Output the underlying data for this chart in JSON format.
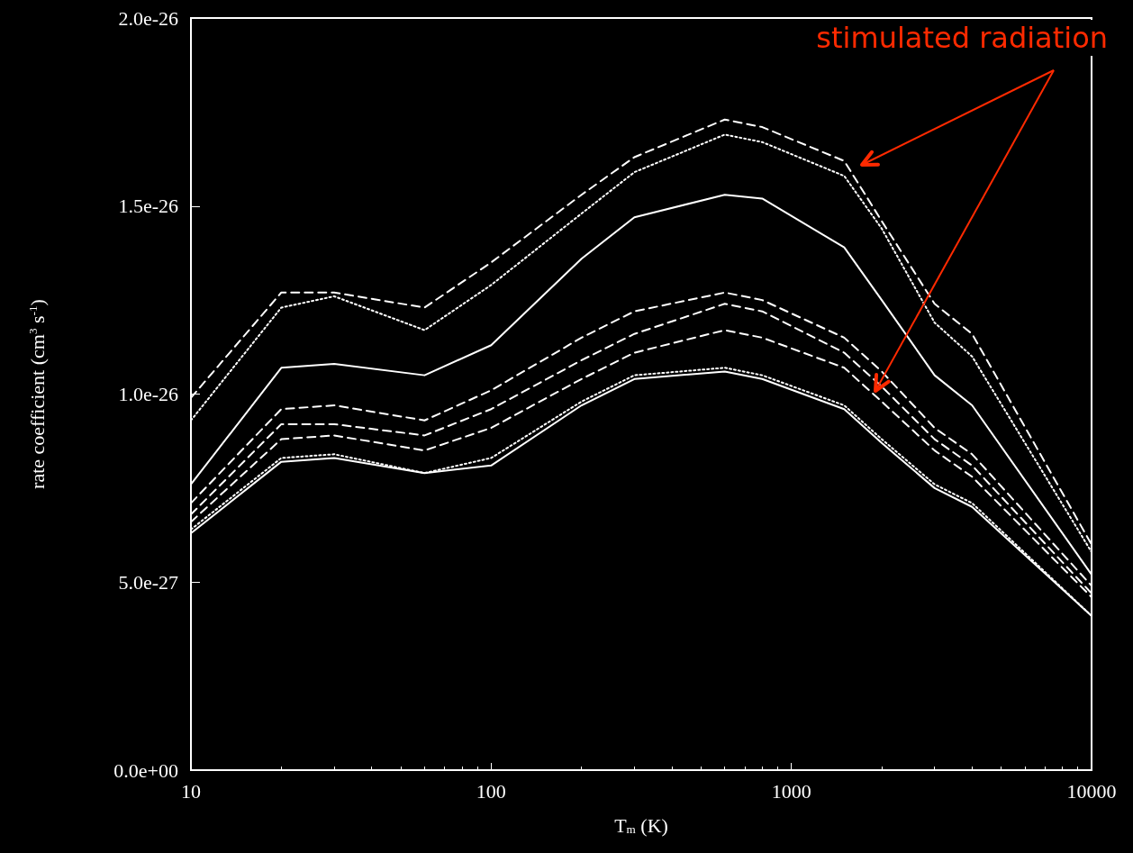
{
  "chart_data": {
    "type": "line",
    "xlabel": "T$_{m}$ (K)",
    "ylabel": "rate coefficient (cm$^{3}$ s$^{-1}$)",
    "x": [
      10,
      20,
      30,
      60,
      100,
      200,
      300,
      600,
      800,
      1500,
      2000,
      3000,
      4000,
      10000
    ],
    "series": [
      {
        "color": "#ffffff",
        "line_style": "dashed",
        "values": [
          9.9e-27,
          1.27e-26,
          1.27e-26,
          1.23e-26,
          1.35e-26,
          1.53e-26,
          1.63e-26,
          1.73e-26,
          1.71e-26,
          1.62e-26,
          1.46e-26,
          1.24e-26,
          1.16e-26,
          6e-27
        ]
      },
      {
        "color": "#ffffff",
        "line_style": "dotted",
        "values": [
          9.3e-27,
          1.23e-26,
          1.26e-26,
          1.17e-26,
          1.29e-26,
          1.48e-26,
          1.59e-26,
          1.69e-26,
          1.67e-26,
          1.58e-26,
          1.44e-26,
          1.19e-26,
          1.1e-26,
          5.8e-27
        ]
      },
      {
        "color": "#ffffff",
        "line_style": "solid",
        "values": [
          7.6e-27,
          1.07e-26,
          1.08e-26,
          1.05e-26,
          1.13e-26,
          1.36e-26,
          1.47e-26,
          1.53e-26,
          1.52e-26,
          1.39e-26,
          1.25e-26,
          1.05e-26,
          9.7e-27,
          5.2e-27
        ]
      },
      {
        "color": "#ffffff",
        "line_style": "dashed",
        "values": [
          7.1e-27,
          9.6e-27,
          9.7e-27,
          9.3e-27,
          1.01e-26,
          1.15e-26,
          1.22e-26,
          1.27e-26,
          1.25e-26,
          1.15e-26,
          1.06e-26,
          9.1e-27,
          8.4e-27,
          4.9e-27
        ]
      },
      {
        "color": "#ffffff",
        "line_style": "dashed",
        "values": [
          6.8e-27,
          9.2e-27,
          9.2e-27,
          8.9e-27,
          9.6e-27,
          1.09e-26,
          1.16e-26,
          1.24e-26,
          1.22e-26,
          1.11e-26,
          1.02e-26,
          8.8e-27,
          8.1e-27,
          4.7e-27
        ]
      },
      {
        "color": "#ffffff",
        "line_style": "dashed",
        "values": [
          6.6e-27,
          8.8e-27,
          8.9e-27,
          8.5e-27,
          9.1e-27,
          1.04e-26,
          1.11e-26,
          1.17e-26,
          1.15e-26,
          1.07e-26,
          9.8e-27,
          8.5e-27,
          7.8e-27,
          4.6e-27
        ]
      },
      {
        "color": "#ffffff",
        "line_style": "dotted",
        "values": [
          6.4e-27,
          8.3e-27,
          8.4e-27,
          7.9e-27,
          8.3e-27,
          9.8e-27,
          1.05e-26,
          1.07e-26,
          1.05e-26,
          9.7e-27,
          8.8e-27,
          7.6e-27,
          7.1e-27,
          4.1e-27
        ]
      },
      {
        "color": "#ffffff",
        "line_style": "solid",
        "values": [
          6.3e-27,
          8.2e-27,
          8.3e-27,
          7.9e-27,
          8.1e-27,
          9.7e-27,
          1.04e-26,
          1.06e-26,
          1.04e-26,
          9.6e-27,
          8.7e-27,
          7.5e-27,
          7e-27,
          4.1e-27
        ]
      }
    ],
    "log": "x",
    "xlim": [
      10,
      10000
    ],
    "xticks": [
      10,
      100,
      1000,
      10000
    ],
    "ylim": [
      0,
      2e-26
    ],
    "yticks": [
      {
        "value": 0,
        "label": "0.0e+00"
      },
      {
        "value": 5e-27,
        "label": "5.0e-27"
      },
      {
        "value": 1e-26,
        "label": "1.0e-26"
      },
      {
        "value": 1.5e-26,
        "label": "1.5e-26"
      },
      {
        "value": 2e-26,
        "label": "2.0e-26"
      }
    ],
    "grid": false,
    "marker": "none",
    "annotations": [
      "stimulated radiation"
    ]
  }
}
